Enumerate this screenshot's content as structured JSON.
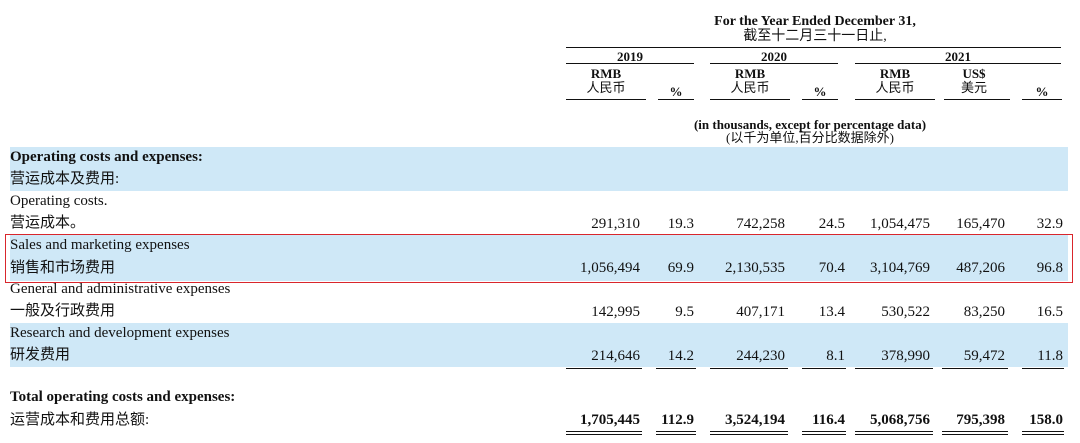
{
  "header": {
    "period_en": "For the Year Ended December 31,",
    "period_zh": "截至十二月三十一日止,",
    "years": [
      "2019",
      "2020",
      "2021"
    ],
    "currencies": [
      {
        "code": "RMB",
        "zh": "人民币"
      },
      {
        "code": "RMB",
        "zh": "人民币"
      },
      {
        "code": "RMB",
        "zh": "人民币"
      },
      {
        "code": "US$",
        "zh": "美元"
      }
    ],
    "percent_label": "%",
    "units_en": "(in thousands, except for percentage data)",
    "units_zh": "(以千为单位,百分比数据除外)"
  },
  "rows": [
    {
      "en": "Operating costs and expenses:",
      "zh": "营运成本及费用:",
      "values": []
    },
    {
      "en": "Operating costs.",
      "zh": "营运成本。",
      "values": [
        "291,310",
        "19.3",
        "742,258",
        "24.5",
        "1,054,475",
        "165,470",
        "32.9"
      ]
    },
    {
      "en": "Sales and marketing expenses",
      "zh": "销售和市场费用",
      "values": [
        "1,056,494",
        "69.9",
        "2,130,535",
        "70.4",
        "3,104,769",
        "487,206",
        "96.8"
      ]
    },
    {
      "en": "General and administrative expenses",
      "zh": "一般及行政费用",
      "values": [
        "142,995",
        "9.5",
        "407,171",
        "13.4",
        "530,522",
        "83,250",
        "16.5"
      ]
    },
    {
      "en": "Research and development expenses",
      "zh": "研发费用",
      "values": [
        "214,646",
        "14.2",
        "244,230",
        "8.1",
        "378,990",
        "59,472",
        "11.8"
      ]
    },
    {
      "en": "Total operating costs and expenses:",
      "zh": "运营成本和费用总额:",
      "values": [
        "1,705,445",
        "112.9",
        "3,524,194",
        "116.4",
        "5,068,756",
        "795,398",
        "158.0"
      ]
    }
  ],
  "colors": {
    "band": "#cfe8f7",
    "highlight_border": "#d9262c"
  }
}
